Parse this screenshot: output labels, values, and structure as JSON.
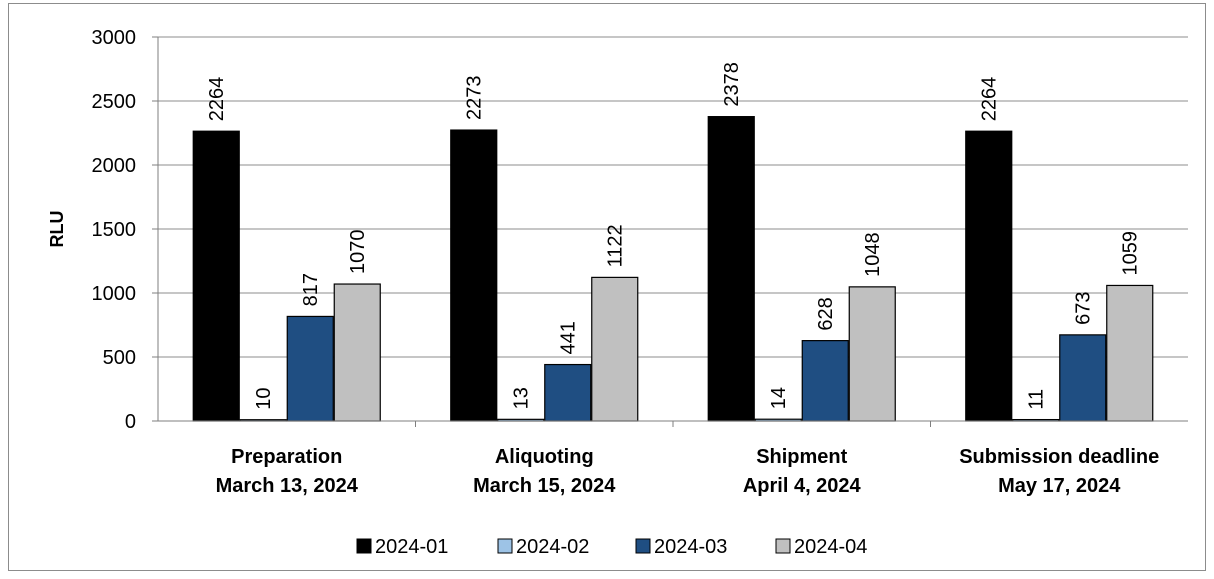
{
  "chart_data": {
    "type": "bar",
    "title": "",
    "xlabel": "",
    "ylabel": "RLU",
    "ylim": [
      0,
      3000
    ],
    "yticks": [
      0,
      500,
      1000,
      1500,
      2000,
      2500,
      3000
    ],
    "grid": true,
    "legend_position": "bottom",
    "categories": [
      [
        "Preparation",
        "March 13, 2024"
      ],
      [
        "Aliquoting",
        "March 15, 2024"
      ],
      [
        "Shipment",
        "April 4, 2024"
      ],
      [
        "Submission deadline",
        "May 17, 2024"
      ]
    ],
    "series": [
      {
        "name": "2024-01",
        "color": "#000000",
        "values": [
          2264,
          2273,
          2378,
          2264
        ]
      },
      {
        "name": "2024-02",
        "color": "#9dc3e6",
        "values": [
          10,
          13,
          14,
          11
        ]
      },
      {
        "name": "2024-03",
        "color": "#1f4e82",
        "values": [
          817,
          441,
          628,
          673
        ]
      },
      {
        "name": "2024-04",
        "color": "#c0c0c0",
        "values": [
          1070,
          1122,
          1048,
          1059
        ]
      }
    ]
  }
}
